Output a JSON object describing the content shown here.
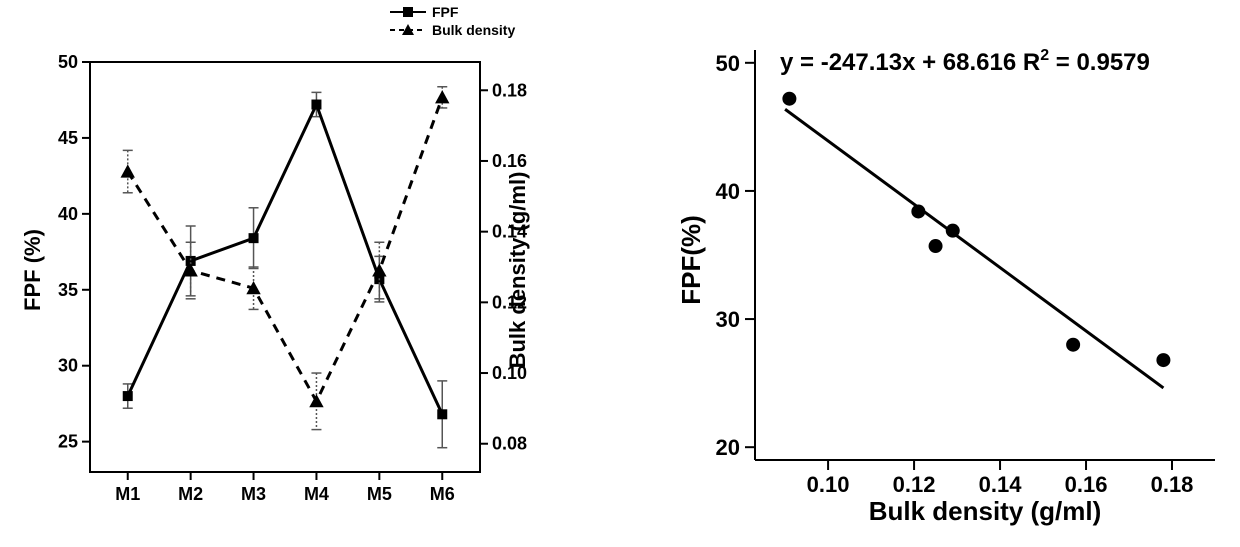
{
  "left_chart": {
    "type": "dual-axis-line",
    "categories": [
      "M1",
      "M2",
      "M3",
      "M4",
      "M5",
      "M6"
    ],
    "series": {
      "fpf": {
        "label": "FPF",
        "marker": "square",
        "marker_size": 10,
        "line_style": "solid",
        "line_width": 3,
        "color": "#000000",
        "values": [
          28.0,
          36.9,
          38.4,
          47.2,
          35.7,
          26.8
        ],
        "error": [
          0.8,
          2.3,
          2.0,
          0.8,
          1.5,
          2.2
        ]
      },
      "bulk_density": {
        "label": "Bulk density",
        "marker": "triangle",
        "marker_size": 12,
        "line_style": "dashed",
        "line_width": 3,
        "color": "#000000",
        "values": [
          0.157,
          0.129,
          0.124,
          0.092,
          0.129,
          0.178
        ],
        "error": [
          0.006,
          0.008,
          0.006,
          0.008,
          0.008,
          0.003
        ]
      }
    },
    "y_left": {
      "label": "FPF (%)",
      "min": 23,
      "max": 50,
      "ticks": [
        25,
        30,
        35,
        40,
        45,
        50
      ]
    },
    "y_right": {
      "label": "Bulk density (g/ml)",
      "min": 0.072,
      "max": 0.188,
      "ticks": [
        0.08,
        0.1,
        0.12,
        0.14,
        0.16,
        0.18
      ]
    },
    "legend": {
      "position": "top-right-outside"
    },
    "background_color": "#ffffff",
    "tick_font_size": 18,
    "label_font_size": 22
  },
  "right_chart": {
    "type": "scatter-with-fit",
    "points": [
      {
        "x": 0.091,
        "y": 47.2
      },
      {
        "x": 0.121,
        "y": 38.4
      },
      {
        "x": 0.125,
        "y": 35.7
      },
      {
        "x": 0.129,
        "y": 36.9
      },
      {
        "x": 0.157,
        "y": 28.0
      },
      {
        "x": 0.178,
        "y": 26.8
      }
    ],
    "marker": "circle",
    "marker_size": 10,
    "marker_color": "#000000",
    "fit_line": {
      "slope": -247.13,
      "intercept": 68.616,
      "r2": 0.9579,
      "x1": 0.09,
      "x2": 0.178,
      "color": "#000000",
      "width": 3
    },
    "equation_text": "y = -247.13x + 68.616 R² = 0.9579",
    "x_axis": {
      "label": "Bulk density (g/ml)",
      "min": 0.083,
      "max": 0.19,
      "ticks": [
        0.1,
        0.12,
        0.14,
        0.16,
        0.18
      ]
    },
    "y_axis": {
      "label": "FPF(%)",
      "min": 19,
      "max": 51,
      "ticks": [
        20,
        30,
        40,
        50
      ]
    },
    "background_color": "#ffffff",
    "tick_font_size": 22,
    "label_font_size": 26
  }
}
